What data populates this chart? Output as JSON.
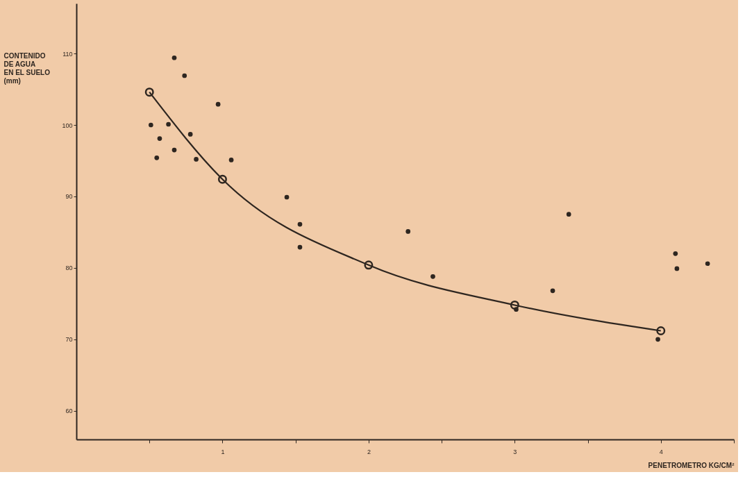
{
  "chart_data": {
    "type": "scatter",
    "xlabel": "PENETROMETRO KG/CM²",
    "ylabel": "CONTENIDO\nDE AGUA\nEN EL SUELO\n(mm)",
    "xlim": [
      0,
      4.5
    ],
    "ylim": [
      56,
      117
    ],
    "xticks": [
      {
        "value": 0.5,
        "label": null
      },
      1,
      {
        "value": 1.5,
        "label": null
      },
      2,
      {
        "value": 2.5,
        "label": null
      },
      3,
      {
        "value": 3.5,
        "label": null
      },
      4,
      {
        "value": 4.5,
        "label": null
      }
    ],
    "yticks": [
      60,
      70,
      80,
      90,
      100,
      110
    ],
    "grid": false,
    "series": [
      {
        "type": "line",
        "color": "#2e2620",
        "marker": "circle",
        "line_style": "solid",
        "x": [
          0.5,
          1.0,
          2.0,
          3.0,
          4.0
        ],
        "values": [
          104.6,
          92.4,
          80.4,
          74.8,
          71.2
        ]
      },
      {
        "color": "#2e2620",
        "marker": "circle",
        "x": [
          0.67,
          0.74,
          0.97,
          0.51,
          0.63,
          0.57,
          0.78,
          0.55,
          0.67,
          0.82,
          1.06,
          1.44,
          1.53,
          1.53,
          2.27,
          2.44,
          3.26,
          3.37,
          3.01,
          3.98,
          4.1,
          4.11,
          4.32
        ],
        "values": [
          109.4,
          106.9,
          102.9,
          100.0,
          100.1,
          98.1,
          98.7,
          95.4,
          96.5,
          95.2,
          95.1,
          89.9,
          86.1,
          82.9,
          85.1,
          78.8,
          76.8,
          87.5,
          74.2,
          70.0,
          82.0,
          79.9,
          80.6
        ]
      }
    ]
  }
}
